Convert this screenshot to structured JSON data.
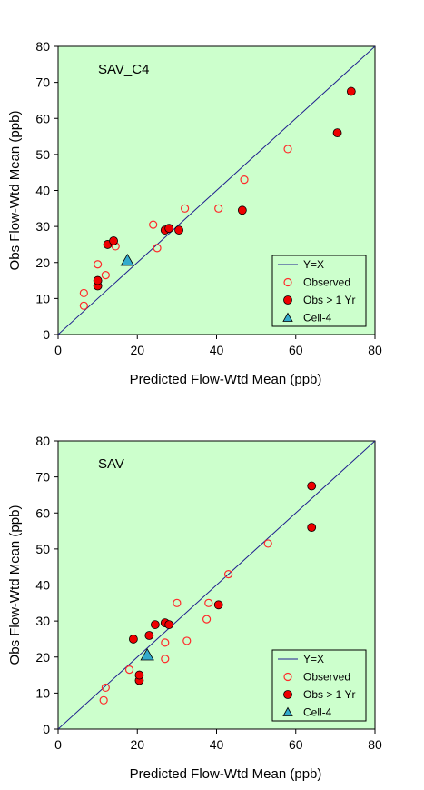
{
  "colors": {
    "plot_bg": "#ccffcc",
    "line": "#1f1f8f",
    "observed": "#ff2a2a",
    "obs_gt_1yr_fill": "#ee0000",
    "cell4_fill": "#33aacc"
  },
  "chart_data": [
    {
      "type": "scatter",
      "label": "SAV_C4",
      "xlabel": "Predicted Flow-Wtd Mean  (ppb)",
      "ylabel": "Obs Flow-Wtd Mean  (ppb)",
      "xlim": [
        0,
        80
      ],
      "ylim": [
        0,
        80
      ],
      "xticks": [
        "0",
        "20",
        "40",
        "60",
        "80"
      ],
      "yticks": [
        "0",
        "10",
        "20",
        "30",
        "40",
        "50",
        "60",
        "70",
        "80"
      ],
      "grid": false,
      "legend_position": "bottom-right",
      "legend": [
        "Y=X",
        "Observed",
        "Obs > 1 Yr",
        "Cell-4"
      ],
      "series": [
        {
          "name": "Y=X",
          "kind": "line",
          "x": [
            0,
            80
          ],
          "y": [
            0,
            80
          ]
        },
        {
          "name": "Observed",
          "kind": "open-circle",
          "x": [
            6.5,
            6.5,
            10,
            12,
            14.5,
            24,
            25,
            32,
            40.5,
            47,
            58
          ],
          "y": [
            8,
            11.5,
            19.5,
            16.5,
            24.5,
            30.5,
            24,
            35,
            35,
            43,
            51.5
          ]
        },
        {
          "name": "Obs > 1 Yr",
          "kind": "filled-circle",
          "x": [
            10,
            10,
            12.5,
            14,
            27,
            28,
            30.5,
            46.5,
            70.5,
            74
          ],
          "y": [
            13.5,
            15,
            25,
            26,
            29,
            29.5,
            29,
            34.5,
            56,
            67.5
          ]
        },
        {
          "name": "Cell-4",
          "kind": "triangle",
          "x": [
            17.5
          ],
          "y": [
            20.5
          ]
        }
      ]
    },
    {
      "type": "scatter",
      "label": "SAV",
      "xlabel": "Predicted Flow-Wtd Mean  (ppb)",
      "ylabel": "Obs Flow-Wtd Mean  (ppb)",
      "xlim": [
        0,
        80
      ],
      "ylim": [
        0,
        80
      ],
      "xticks": [
        "0",
        "20",
        "40",
        "60",
        "80"
      ],
      "yticks": [
        "0",
        "10",
        "20",
        "30",
        "40",
        "50",
        "60",
        "70",
        "80"
      ],
      "grid": false,
      "legend_position": "bottom-right",
      "legend": [
        "Y=X",
        "Observed",
        "Obs > 1 Yr",
        "Cell-4"
      ],
      "series": [
        {
          "name": "Y=X",
          "kind": "line",
          "x": [
            0,
            80
          ],
          "y": [
            0,
            80
          ]
        },
        {
          "name": "Observed",
          "kind": "open-circle",
          "x": [
            11.5,
            12,
            18,
            27,
            27,
            30,
            32.5,
            37.5,
            38,
            43,
            53
          ],
          "y": [
            8,
            11.5,
            16.5,
            19.5,
            24,
            35,
            24.5,
            30.5,
            35,
            43,
            51.5
          ]
        },
        {
          "name": "Obs > 1 Yr",
          "kind": "filled-circle",
          "x": [
            20.5,
            20.5,
            19,
            23,
            24.5,
            27,
            28,
            40.5,
            64,
            64
          ],
          "y": [
            13.5,
            15,
            25,
            26,
            29,
            29.5,
            29,
            34.5,
            56,
            67.5
          ]
        },
        {
          "name": "Cell-4",
          "kind": "triangle",
          "x": [
            22.5
          ],
          "y": [
            20.5
          ]
        }
      ]
    }
  ]
}
